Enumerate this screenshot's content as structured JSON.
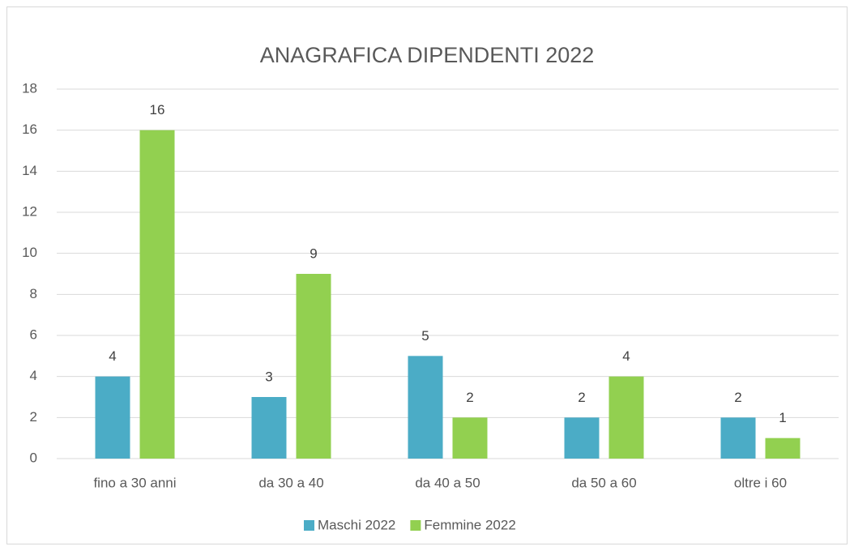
{
  "chart_data": {
    "type": "bar",
    "title": "ANAGRAFICA DIPENDENTI 2022",
    "categories": [
      "fino a 30 anni",
      "da 30 a 40",
      "da 40 a 50",
      "da 50 a 60",
      "oltre i 60"
    ],
    "series": [
      {
        "name": "Maschi 2022",
        "color": "#4bacc6",
        "values": [
          4,
          3,
          5,
          2,
          2
        ]
      },
      {
        "name": "Femmine 2022",
        "color": "#92d050",
        "values": [
          16,
          9,
          2,
          4,
          1
        ]
      }
    ],
    "ylim": [
      0,
      18
    ],
    "yticks": [
      0,
      2,
      4,
      6,
      8,
      10,
      12,
      14,
      16,
      18
    ],
    "grid": true,
    "legend": "bottom"
  }
}
